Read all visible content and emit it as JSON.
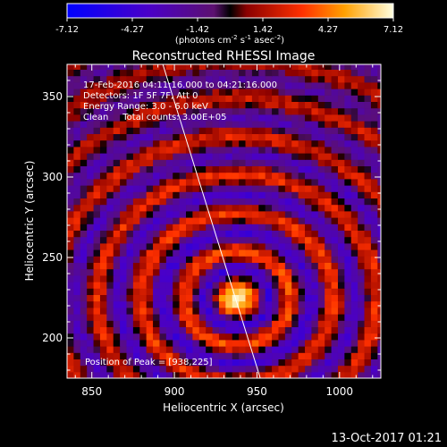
{
  "chart_data": {
    "type": "heatmap",
    "title": "Reconstructed RHESSI Image",
    "xlabel": "Heliocentric X (arcsec)",
    "ylabel": "Heliocentric Y (arcsec)",
    "xlim": [
      835,
      1025
    ],
    "ylim": [
      175,
      370
    ],
    "x_ticks": [
      850,
      900,
      950,
      1000
    ],
    "y_ticks": [
      200,
      250,
      300,
      350
    ],
    "peak": [
      938,
      225
    ],
    "colorbar": {
      "min": -7.12,
      "max": 7.12,
      "ticks": [
        "-7.12",
        "-4.27",
        "-1.42",
        "1.42",
        "4.27",
        "7.12"
      ],
      "unit_base": "(photons cm",
      "unit_exp1": "-2",
      "unit_mid1": " s",
      "unit_exp2": "-1",
      "unit_mid2": " asec",
      "unit_exp3": "-2",
      "unit_end": ")"
    },
    "annotations": {
      "time_range": "17-Feb-2016 04:11:16.000 to 04:21:16.000",
      "detectors": "Detectors: 1F 5F 7F, Att 0",
      "energy": "Energy Range: 3.0 - 6.0 keV",
      "clean": "Clean     Total counts: 3.00E+05",
      "peak_label": "Position of Peak = [938,225]"
    },
    "limb_line": {
      "x": [
        893,
        952
      ],
      "y": [
        370,
        175
      ]
    }
  },
  "footer": {
    "date": "13-Oct-2017 01:21"
  },
  "colors": {
    "background": "#000000",
    "text": "#ffffff"
  }
}
